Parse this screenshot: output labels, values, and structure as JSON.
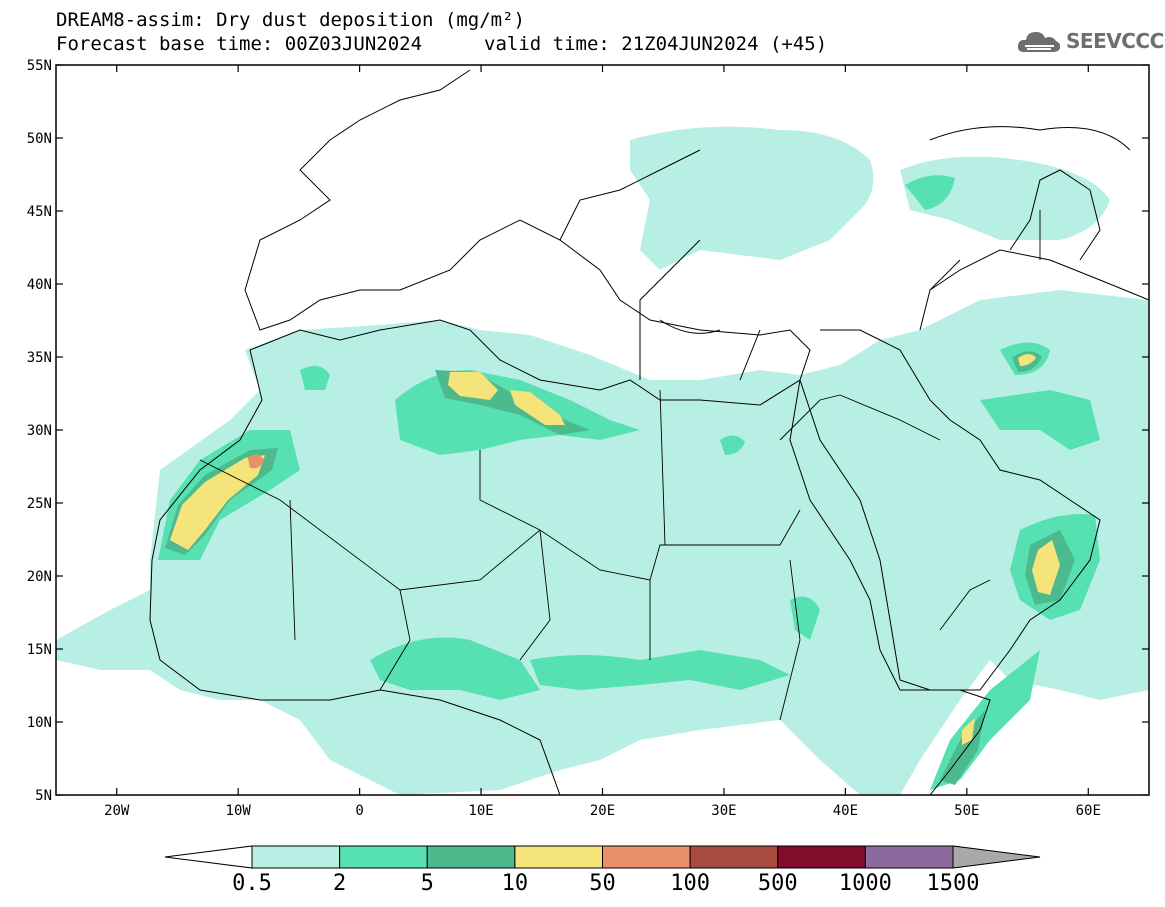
{
  "title": {
    "line1": "DREAM8-assim: Dry dust deposition (mg/m²)",
    "line2": "Forecast base time: 00Z03JUN2024",
    "valid": "valid time: 21Z04JUN2024 (+45)"
  },
  "logo": {
    "text": "SEEVCCC",
    "icon": "cloud-logo-icon"
  },
  "map": {
    "lon_range": [
      -25,
      65
    ],
    "lat_range": [
      5,
      55
    ],
    "lat_ticks": [
      "55N",
      "50N",
      "45N",
      "40N",
      "35N",
      "30N",
      "25N",
      "20N",
      "15N",
      "10N",
      "5N"
    ],
    "lon_ticks": [
      "20W",
      "10W",
      "0",
      "10E",
      "20E",
      "30E",
      "40E",
      "50E",
      "60E"
    ]
  },
  "colorbar": {
    "labels": [
      "0.5",
      "2",
      "5",
      "10",
      "50",
      "100",
      "500",
      "1000",
      "1500"
    ],
    "colors": [
      "#b8efe4",
      "#57e0b2",
      "#4dba8e",
      "#f4e47a",
      "#e9906b",
      "#a84b40",
      "#820c2c",
      "#8d6a9d"
    ],
    "under_color": "#ffffff",
    "over_color": "#a9a9a9"
  },
  "colors": {
    "land_line": "#000000",
    "frame": "#000000"
  }
}
